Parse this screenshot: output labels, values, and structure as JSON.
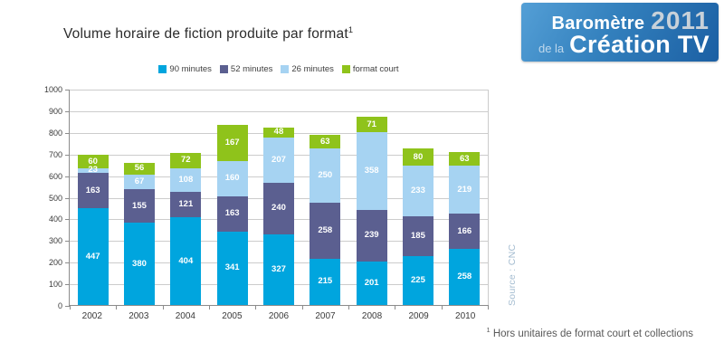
{
  "header": {
    "title": "Volume horaire de fiction produite par format",
    "title_superscript": "1",
    "logo": {
      "line1_text": "Baromètre",
      "line1_year": "2011",
      "line2_prefix": "de la",
      "line2_text": "Création TV",
      "gradient_start": "#549fd6",
      "gradient_end": "#1b5fa3",
      "year_color": "#c8d1d9"
    }
  },
  "chart_data": {
    "type": "bar",
    "stacked": true,
    "title": "Volume horaire de fiction produite par format¹",
    "categories": [
      "2002",
      "2003",
      "2004",
      "2005",
      "2006",
      "2007",
      "2008",
      "2009",
      "2010"
    ],
    "series": [
      {
        "name": "90 minutes",
        "color": "#00a5de",
        "values": [
          447,
          380,
          404,
          341,
          327,
          215,
          201,
          225,
          258
        ]
      },
      {
        "name": "52 minutes",
        "color": "#5b5f90",
        "values": [
          163,
          155,
          121,
          163,
          240,
          258,
          239,
          185,
          166
        ]
      },
      {
        "name": "26 minutes",
        "color": "#a6d3f2",
        "values": [
          23,
          67,
          108,
          160,
          207,
          250,
          358,
          233,
          219
        ]
      },
      {
        "name": "format court",
        "color": "#8fc31b",
        "values": [
          60,
          56,
          72,
          167,
          48,
          63,
          71,
          80,
          63
        ]
      }
    ],
    "ylim": [
      0,
      1000
    ],
    "ytick_step": 100,
    "grid": true,
    "legend_position": "top",
    "value_labels": true,
    "source_label": "Source : CNC"
  },
  "footnote": {
    "superscript": "1",
    "text": "Hors unitaires de format court et collections"
  }
}
